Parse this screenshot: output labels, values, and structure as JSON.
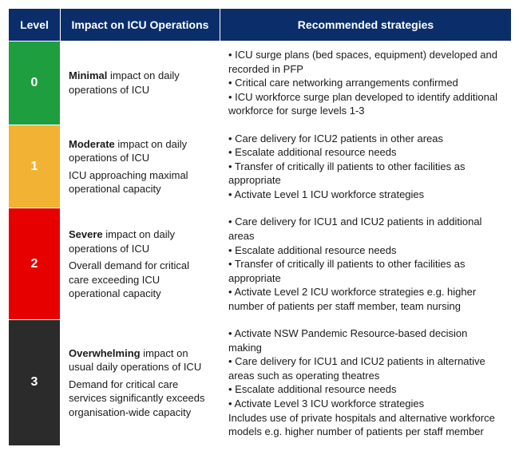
{
  "header": {
    "level": "Level",
    "impact": "Impact on ICU Operations",
    "strategies": "Recommended strategies",
    "bg": "#0b2e6b"
  },
  "rows": [
    {
      "level": "0",
      "level_bg": "#1f9e3f",
      "impact_bold": "Minimal",
      "impact_rest": " impact on daily operations of ICU",
      "impact_extra": "",
      "strategies": [
        "• ICU surge plans (bed spaces, equipment) developed and recorded in PFP",
        "• Critical care networking arrangements confirmed",
        "• ICU workforce surge plan developed to identify additional workforce for surge levels 1-3"
      ]
    },
    {
      "level": "1",
      "level_bg": "#f2b233",
      "impact_bold": "Moderate",
      "impact_rest": " impact on daily operations of ICU",
      "impact_extra": "ICU approaching maximal operational capacity",
      "strategies": [
        "• Care delivery for ICU2 patients in other areas",
        "• Escalate additional resource needs",
        "• Transfer of critically ill patients to other facilities as appropriate",
        "• Activate Level 1 ICU workforce strategies"
      ]
    },
    {
      "level": "2",
      "level_bg": "#e60000",
      "impact_bold": "Severe",
      "impact_rest": " impact on daily operations of ICU",
      "impact_extra": "Overall demand for critical care exceeding ICU operational capacity",
      "strategies": [
        "• Care delivery for ICU1 and ICU2 patients in additional areas",
        "• Escalate additional resource needs",
        "• Transfer of critically ill patients to other facilities as appropriate",
        "• Activate Level 2 ICU workforce strategies e.g. higher number of patients per staff member, team nursing"
      ]
    },
    {
      "level": "3",
      "level_bg": "#2b2b2b",
      "impact_bold": "Overwhelming",
      "impact_rest": " impact on usual daily operations of ICU",
      "impact_extra": "Demand for critical care services significantly exceeds organisation-wide capacity",
      "strategies": [
        "• Activate NSW Pandemic Resource-based decision making",
        "• Care delivery for ICU1 and ICU2 patients in alternative areas such as operating theatres",
        "• Escalate additional resource needs",
        "• Activate Level 3 ICU workforce strategies",
        "Includes use of private hospitals and alternative workforce models e.g. higher number of patients per staff member"
      ]
    }
  ]
}
